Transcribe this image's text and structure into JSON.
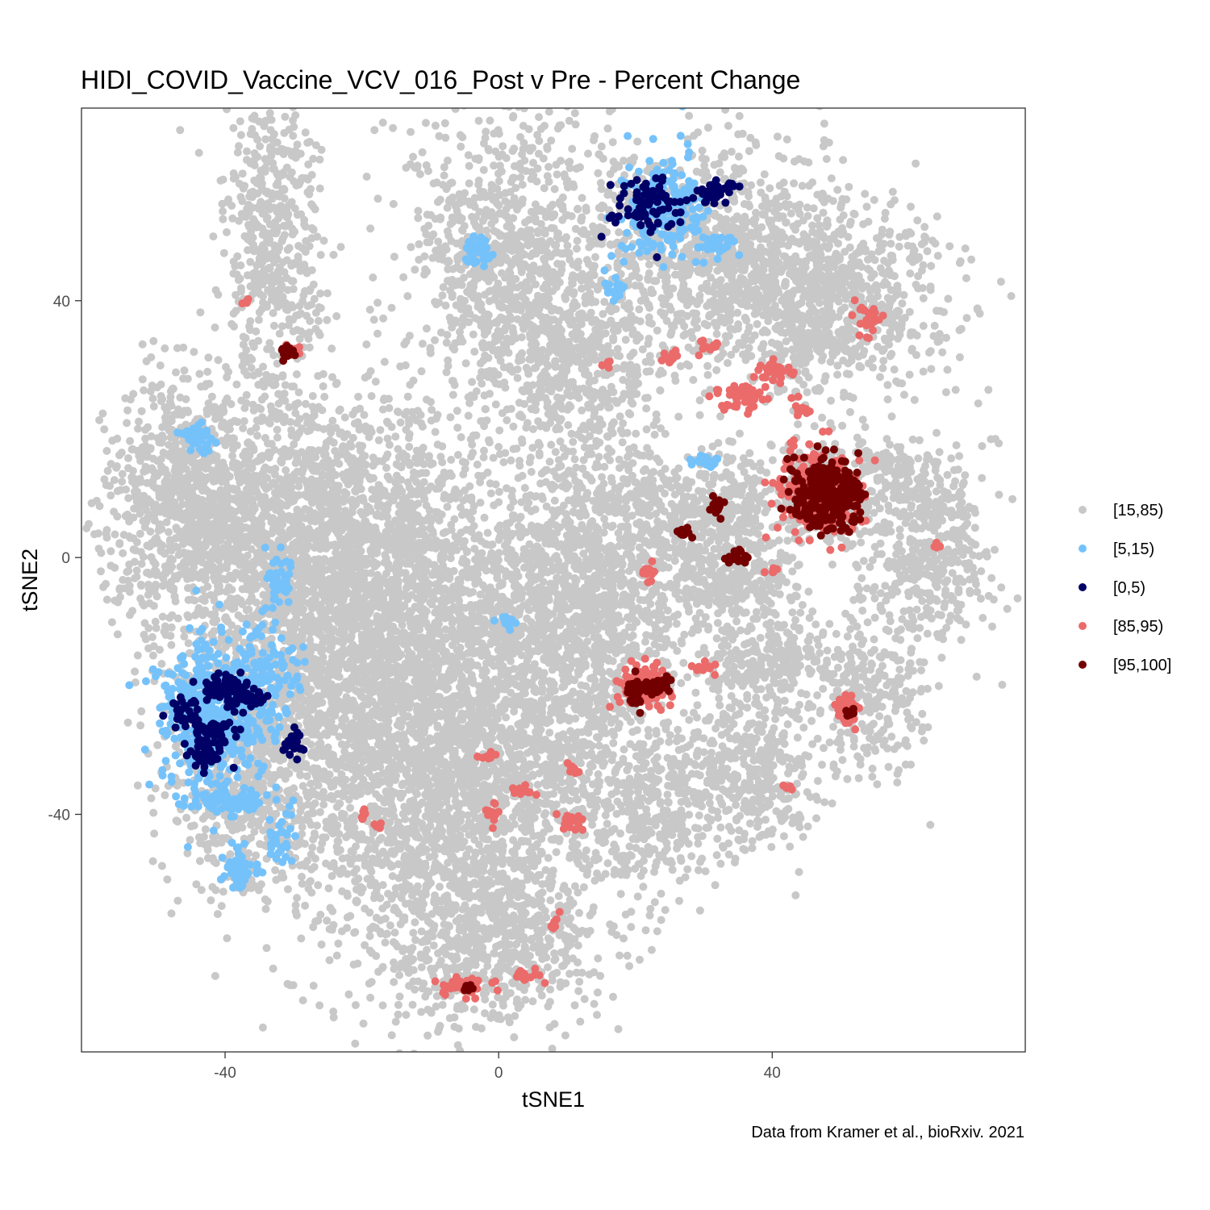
{
  "chart_data": {
    "type": "scatter",
    "title": "HIDI_COVID_Vaccine_VCV_016_Post v Pre - Percent Change",
    "xlabel": "tSNE1",
    "ylabel": "tSNE2",
    "caption": "Data from Kramer et al., bioRxiv. 2021",
    "xlim": [
      -61,
      77
    ],
    "ylim": [
      -77,
      70
    ],
    "x_ticks": [
      -40,
      0,
      40
    ],
    "y_ticks": [
      -40,
      0,
      40
    ],
    "grid": false,
    "legend_position": "right",
    "series": [
      {
        "name": "[15,85)",
        "color": "#c8c8c8",
        "clusters": [
          {
            "cx": -33,
            "cy": 49,
            "sx": 3.4,
            "sy": 12,
            "n": 500
          },
          {
            "cx": -45,
            "cy": 10,
            "sx": 5,
            "sy": 10,
            "n": 700
          },
          {
            "cx": -27,
            "cy": 3,
            "sx": 13,
            "sy": 12,
            "n": 2200
          },
          {
            "cx": -18,
            "cy": -18,
            "sx": 10,
            "sy": 14,
            "n": 1600
          },
          {
            "cx": -37,
            "cy": -32,
            "sx": 6,
            "sy": 10,
            "n": 600
          },
          {
            "cx": -8,
            "cy": -42,
            "sx": 12,
            "sy": 14,
            "n": 1400
          },
          {
            "cx": 4,
            "cy": -22,
            "sx": 11,
            "sy": 14,
            "n": 1400
          },
          {
            "cx": 13,
            "cy": -3,
            "sx": 8,
            "sy": 9,
            "n": 900
          },
          {
            "cx": 0,
            "cy": -60,
            "sx": 7,
            "sy": 6,
            "n": 500
          },
          {
            "cx": 1,
            "cy": 48,
            "sx": 7,
            "sy": 12,
            "n": 900
          },
          {
            "cx": 12,
            "cy": 30,
            "sx": 6,
            "sy": 8,
            "n": 500
          },
          {
            "cx": 30,
            "cy": 48,
            "sx": 9,
            "sy": 8,
            "n": 900
          },
          {
            "cx": 48,
            "cy": 40,
            "sx": 9,
            "sy": 8,
            "n": 900
          },
          {
            "cx": 47,
            "cy": 10,
            "sx": 3.5,
            "sy": 4,
            "n": 250
          },
          {
            "cx": 30,
            "cy": 8,
            "sx": 8,
            "sy": 5,
            "n": 500
          },
          {
            "cx": 34,
            "cy": -3,
            "sx": 5,
            "sy": 3,
            "n": 250
          },
          {
            "cx": 63,
            "cy": 0,
            "sx": 5,
            "sy": 7,
            "n": 400
          },
          {
            "cx": 59,
            "cy": 12,
            "sx": 4,
            "sy": 3,
            "n": 150
          },
          {
            "cx": 55,
            "cy": -22,
            "sx": 4,
            "sy": 6,
            "n": 250
          },
          {
            "cx": 37,
            "cy": -33,
            "sx": 5,
            "sy": 7,
            "n": 400
          },
          {
            "cx": 23,
            "cy": -40,
            "sx": 5,
            "sy": 6,
            "n": 300
          },
          {
            "cx": 40,
            "cy": -15,
            "sx": 5,
            "sy": 4,
            "n": 250
          }
        ]
      },
      {
        "name": "[5,15)",
        "color": "#75c2fb",
        "clusters": [
          {
            "cx": -42,
            "cy": -24,
            "sx": 4,
            "sy": 6,
            "n": 450
          },
          {
            "cx": -34,
            "cy": -18,
            "sx": 2.5,
            "sy": 5,
            "n": 120
          },
          {
            "cx": -40,
            "cy": -38,
            "sx": 3,
            "sy": 1,
            "n": 80
          },
          {
            "cx": -38,
            "cy": -48,
            "sx": 1.5,
            "sy": 2,
            "n": 50
          },
          {
            "cx": -32,
            "cy": -44,
            "sx": 1,
            "sy": 2,
            "n": 30
          },
          {
            "cx": -32,
            "cy": -3,
            "sx": 1,
            "sy": 2,
            "n": 40
          },
          {
            "cx": -44,
            "cy": 19,
            "sx": 1.2,
            "sy": 1.5,
            "n": 40
          },
          {
            "cx": 24,
            "cy": 55,
            "sx": 3,
            "sy": 4,
            "n": 200
          },
          {
            "cx": -3,
            "cy": 48,
            "sx": 1,
            "sy": 1.5,
            "n": 30
          },
          {
            "cx": 32,
            "cy": 49,
            "sx": 1,
            "sy": 1,
            "n": 25
          },
          {
            "cx": 17,
            "cy": 42,
            "sx": 1,
            "sy": 1,
            "n": 20
          },
          {
            "cx": 30,
            "cy": 15,
            "sx": 1.2,
            "sy": 0.5,
            "n": 20
          },
          {
            "cx": 1,
            "cy": -10,
            "sx": 0.8,
            "sy": 0.8,
            "n": 15
          }
        ]
      },
      {
        "name": "[0,5)",
        "color": "#000066",
        "clusters": [
          {
            "cx": -40,
            "cy": -20,
            "sx": 2,
            "sy": 1,
            "n": 60
          },
          {
            "cx": -37,
            "cy": -22,
            "sx": 1.5,
            "sy": 1,
            "n": 50
          },
          {
            "cx": -42,
            "cy": -27,
            "sx": 2,
            "sy": 1.2,
            "n": 50
          },
          {
            "cx": -43,
            "cy": -31,
            "sx": 1.5,
            "sy": 1,
            "n": 40
          },
          {
            "cx": -46,
            "cy": -24,
            "sx": 1,
            "sy": 1,
            "n": 25
          },
          {
            "cx": -30,
            "cy": -29,
            "sx": 0.8,
            "sy": 0.8,
            "n": 25
          },
          {
            "cx": 22,
            "cy": 55,
            "sx": 2.5,
            "sy": 2.2,
            "n": 80
          },
          {
            "cx": 32,
            "cy": 57,
            "sx": 1.5,
            "sy": 0.8,
            "n": 40
          }
        ]
      },
      {
        "name": "[85,95)",
        "color": "#eb6b6b",
        "clusters": [
          {
            "cx": 47,
            "cy": 10,
            "sx": 3.2,
            "sy": 3.2,
            "n": 250
          },
          {
            "cx": 21,
            "cy": -20,
            "sx": 2.2,
            "sy": 1.8,
            "n": 80
          },
          {
            "cx": 36,
            "cy": 25,
            "sx": 2,
            "sy": 1,
            "n": 50
          },
          {
            "cx": 41,
            "cy": 29,
            "sx": 1.5,
            "sy": 0.8,
            "n": 25
          },
          {
            "cx": 54,
            "cy": 37,
            "sx": 1.2,
            "sy": 1.5,
            "n": 25
          },
          {
            "cx": 31,
            "cy": 33,
            "sx": 0.8,
            "sy": 0.6,
            "n": 15
          },
          {
            "cx": 25,
            "cy": 31,
            "sx": 0.6,
            "sy": 0.6,
            "n": 10
          },
          {
            "cx": 44,
            "cy": 23,
            "sx": 0.6,
            "sy": 0.8,
            "n": 10
          },
          {
            "cx": 22,
            "cy": -2,
            "sx": 0.5,
            "sy": 1,
            "n": 12
          },
          {
            "cx": 30,
            "cy": -17,
            "sx": 0.8,
            "sy": 0.6,
            "n": 12
          },
          {
            "cx": 51,
            "cy": -24,
            "sx": 1,
            "sy": 1.5,
            "n": 30
          },
          {
            "cx": -5,
            "cy": -67,
            "sx": 2,
            "sy": 0.8,
            "n": 40
          },
          {
            "cx": 4,
            "cy": -65,
            "sx": 1,
            "sy": 0.5,
            "n": 15
          },
          {
            "cx": 10,
            "cy": -41,
            "sx": 1,
            "sy": 0.8,
            "n": 20
          },
          {
            "cx": -1,
            "cy": -40,
            "sx": 0.6,
            "sy": 1,
            "n": 15
          },
          {
            "cx": 3,
            "cy": -36,
            "sx": 1,
            "sy": 0.5,
            "n": 15
          },
          {
            "cx": 11,
            "cy": -33,
            "sx": 0.6,
            "sy": 0.6,
            "n": 8
          },
          {
            "cx": -2,
            "cy": -31,
            "sx": 0.6,
            "sy": 0.4,
            "n": 8
          },
          {
            "cx": 8,
            "cy": -57,
            "sx": 0.5,
            "sy": 0.8,
            "n": 8
          },
          {
            "cx": -20,
            "cy": -40,
            "sx": 0.4,
            "sy": 0.6,
            "n": 6
          },
          {
            "cx": -18,
            "cy": -42,
            "sx": 0.4,
            "sy": 0.4,
            "n": 4
          },
          {
            "cx": 42,
            "cy": -36,
            "sx": 0.5,
            "sy": 0.6,
            "n": 6
          },
          {
            "cx": 40,
            "cy": -2,
            "sx": 0.6,
            "sy": 0.4,
            "n": 6
          },
          {
            "cx": 64,
            "cy": 2,
            "sx": 0.4,
            "sy": 0.4,
            "n": 5
          },
          {
            "cx": -37,
            "cy": 40,
            "sx": 0.3,
            "sy": 0.3,
            "n": 4
          },
          {
            "cx": -30,
            "cy": 32,
            "sx": 0.8,
            "sy": 0.6,
            "n": 10
          },
          {
            "cx": 16,
            "cy": 30,
            "sx": 0.4,
            "sy": 0.4,
            "n": 4
          }
        ]
      },
      {
        "name": "[95,100]",
        "color": "#730000",
        "clusters": [
          {
            "cx": 48,
            "cy": 10,
            "sx": 2.4,
            "sy": 2.6,
            "n": 300
          },
          {
            "cx": 23,
            "cy": -20,
            "sx": 1.2,
            "sy": 0.7,
            "n": 40
          },
          {
            "cx": 20,
            "cy": -21,
            "sx": 0.9,
            "sy": 1.4,
            "n": 30
          },
          {
            "cx": 32,
            "cy": 8,
            "sx": 0.5,
            "sy": 0.8,
            "n": 15
          },
          {
            "cx": 27,
            "cy": 4,
            "sx": 0.6,
            "sy": 0.5,
            "n": 15
          },
          {
            "cx": 35,
            "cy": 0,
            "sx": 0.7,
            "sy": 0.5,
            "n": 20
          },
          {
            "cx": 51,
            "cy": -24,
            "sx": 0.5,
            "sy": 0.6,
            "n": 8
          },
          {
            "cx": -5,
            "cy": -67,
            "sx": 0.6,
            "sy": 0.3,
            "n": 8
          },
          {
            "cx": -31,
            "cy": 32,
            "sx": 0.6,
            "sy": 0.8,
            "n": 15
          }
        ]
      }
    ],
    "legend_order": [
      "[15,85)",
      "[5,15)",
      "[0,5)",
      "[85,95)",
      "[95,100]"
    ]
  }
}
